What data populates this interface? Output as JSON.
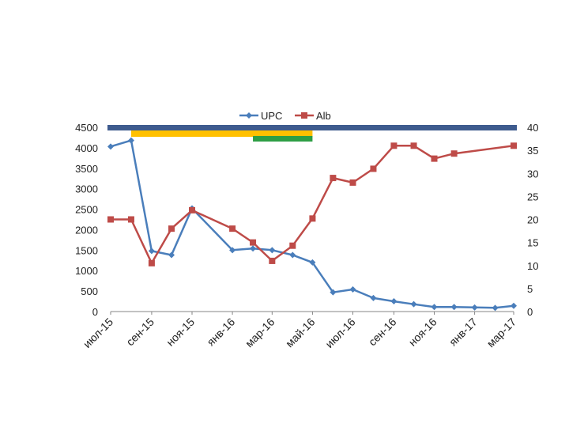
{
  "chart_data": {
    "type": "line",
    "title": "",
    "xlabel": "",
    "ylabel": "",
    "legend_position": "top-center",
    "grid": false,
    "x_tick_labels": [
      "июл-15",
      "сен-15",
      "ноя-15",
      "янв-16",
      "мар-16",
      "май-16",
      "июл-16",
      "сен-16",
      "ноя-16",
      "янв-17",
      "мар-17"
    ],
    "y_left": {
      "min": 0,
      "max": 4500,
      "ticks": [
        "0",
        "500",
        "1000",
        "1500",
        "2000",
        "2500",
        "3000",
        "3500",
        "4000",
        "4500"
      ]
    },
    "y_right": {
      "min": 0,
      "max": 40,
      "ticks": [
        "0",
        "5",
        "10",
        "15",
        "20",
        "25",
        "30",
        "35",
        "40"
      ]
    },
    "series": [
      {
        "name": "UPC",
        "axis": "left",
        "color": "#4a7ebb",
        "marker": "diamond",
        "points": [
          {
            "x": "2015-07-01",
            "y": 4030
          },
          {
            "x": "2015-08-01",
            "y": 4180
          },
          {
            "x": "2015-09-01",
            "y": 1480
          },
          {
            "x": "2015-10-01",
            "y": 1380
          },
          {
            "x": "2015-11-01",
            "y": 2520
          },
          {
            "x": "2016-01-01",
            "y": 1500
          },
          {
            "x": "2016-02-01",
            "y": 1540
          },
          {
            "x": "2016-03-01",
            "y": 1500
          },
          {
            "x": "2016-04-01",
            "y": 1380
          },
          {
            "x": "2016-05-01",
            "y": 1200
          },
          {
            "x": "2016-06-01",
            "y": 470
          },
          {
            "x": "2016-07-01",
            "y": 540
          },
          {
            "x": "2016-08-01",
            "y": 330
          },
          {
            "x": "2016-09-01",
            "y": 250
          },
          {
            "x": "2016-10-01",
            "y": 180
          },
          {
            "x": "2016-11-01",
            "y": 110
          },
          {
            "x": "2016-12-01",
            "y": 110
          },
          {
            "x": "2017-01-01",
            "y": 100
          },
          {
            "x": "2017-02-01",
            "y": 90
          },
          {
            "x": "2017-03-01",
            "y": 140
          }
        ]
      },
      {
        "name": "Alb",
        "axis": "right",
        "color": "#be4b48",
        "marker": "square",
        "points": [
          {
            "x": "2015-07-01",
            "y": 20
          },
          {
            "x": "2015-08-01",
            "y": 20
          },
          {
            "x": "2015-09-01",
            "y": 10.5
          },
          {
            "x": "2015-10-01",
            "y": 18
          },
          {
            "x": "2015-11-01",
            "y": 22
          },
          {
            "x": "2016-01-01",
            "y": 18
          },
          {
            "x": "2016-02-01",
            "y": 15
          },
          {
            "x": "2016-03-01",
            "y": 11
          },
          {
            "x": "2016-04-01",
            "y": 14.3
          },
          {
            "x": "2016-05-01",
            "y": 20.2
          },
          {
            "x": "2016-06-01",
            "y": 29
          },
          {
            "x": "2016-07-01",
            "y": 28
          },
          {
            "x": "2016-08-01",
            "y": 31
          },
          {
            "x": "2016-09-01",
            "y": 36
          },
          {
            "x": "2016-10-01",
            "y": 36
          },
          {
            "x": "2016-11-01",
            "y": 33.2
          },
          {
            "x": "2016-12-01",
            "y": 34.3
          },
          {
            "x": "2017-03-01",
            "y": 36
          }
        ]
      }
    ],
    "bands": [
      {
        "name": "",
        "color": "#3e5b8e",
        "start": "2015-07-01",
        "end": "2017-03-01"
      },
      {
        "name": "",
        "color": "#ffc000",
        "start": "2015-08-01",
        "end": "2016-05-01"
      },
      {
        "name": "",
        "color": "#2e9e45",
        "start": "2016-02-01",
        "end": "2016-05-01"
      }
    ]
  }
}
